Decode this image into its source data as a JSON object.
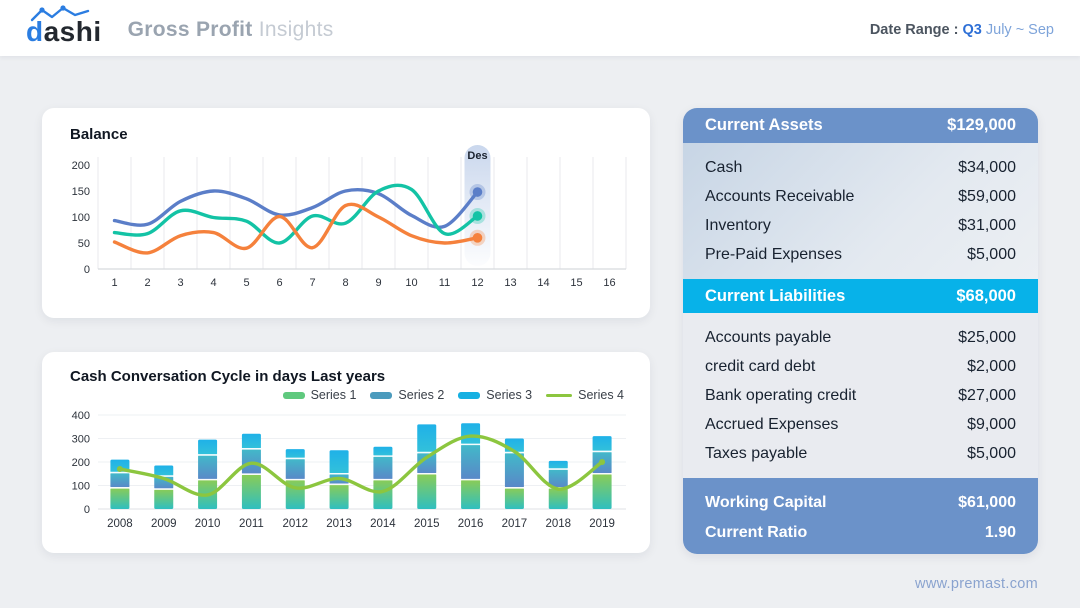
{
  "header": {
    "logo_d": "d",
    "logo_rest": "ashi",
    "title_bold": "Gross Profit",
    "title_light": "Insights",
    "date_range_label": "Date Range :",
    "date_range_quarter": "Q3",
    "date_range_period": "July ~ Sep"
  },
  "chart_data": [
    {
      "type": "line",
      "title": "Balance",
      "categories": [
        1,
        2,
        3,
        4,
        5,
        6,
        7,
        8,
        9,
        10,
        11,
        12,
        13,
        14,
        15,
        16
      ],
      "ylim": [
        0,
        200
      ],
      "yticks": [
        0,
        50,
        100,
        150,
        200
      ],
      "grid": "vertical",
      "annotation": {
        "label": "Des",
        "category": 12
      },
      "series": [
        {
          "name": "balance-blue",
          "color": "#5b7ec8",
          "values": [
            93,
            86,
            130,
            150,
            135,
            104,
            118,
            150,
            145,
            103,
            82,
            148
          ]
        },
        {
          "name": "balance-teal",
          "color": "#13c3a5",
          "values": [
            70,
            68,
            112,
            99,
            92,
            50,
            102,
            88,
            150,
            153,
            68,
            102
          ]
        },
        {
          "name": "balance-orange",
          "color": "#f5813c",
          "values": [
            52,
            31,
            64,
            70,
            40,
            101,
            41,
            122,
            100,
            64,
            50,
            60
          ]
        }
      ]
    },
    {
      "type": "bar",
      "title": "Cash Conversation Cycle in days Last years",
      "categories": [
        2008,
        2009,
        2010,
        2011,
        2012,
        2013,
        2014,
        2015,
        2016,
        2017,
        2018,
        2019
      ],
      "ylim": [
        0,
        400
      ],
      "yticks": [
        0,
        100,
        200,
        300,
        400
      ],
      "grid": "horizontal",
      "legend": [
        "Series 1",
        "Series 2",
        "Series 3",
        "Series 4"
      ],
      "legend_position": "top-right",
      "stacked": true,
      "series": [
        {
          "name": "Series 1",
          "type": "bar",
          "values": [
            90,
            85,
            125,
            148,
            125,
            105,
            125,
            150,
            125,
            90,
            90,
            150
          ]
        },
        {
          "name": "Series 2",
          "type": "bar",
          "values": [
            65,
            55,
            105,
            108,
            90,
            45,
            100,
            90,
            150,
            150,
            80,
            95
          ]
        },
        {
          "name": "Series 3",
          "type": "bar",
          "values": [
            55,
            45,
            65,
            64,
            40,
            100,
            40,
            120,
            90,
            60,
            35,
            65
          ]
        },
        {
          "name": "Series 4",
          "type": "line",
          "values": [
            170,
            130,
            60,
            195,
            90,
            130,
            75,
            220,
            310,
            245,
            85,
            200
          ]
        }
      ]
    }
  ],
  "financials": {
    "assets_header": {
      "label": "Current Assets",
      "value": "$129,000"
    },
    "assets_rows": [
      {
        "label": "Cash",
        "value": "$34,000"
      },
      {
        "label": "Accounts Receivable",
        "value": "$59,000"
      },
      {
        "label": "Inventory",
        "value": "$31,000"
      },
      {
        "label": "Pre-Paid Expenses",
        "value": "$5,000"
      }
    ],
    "liabilities_header": {
      "label": "Current Liabilities",
      "value": "$68,000"
    },
    "liabilities_rows": [
      {
        "label": "Accounts payable",
        "value": "$25,000"
      },
      {
        "label": "credit card debt",
        "value": "$2,000"
      },
      {
        "label": "Bank operating credit",
        "value": "$27,000"
      },
      {
        "label": "Accrued Expenses",
        "value": "$9,000"
      },
      {
        "label": "Taxes payable",
        "value": "$5,000"
      }
    ],
    "summary_rows": [
      {
        "label": "Working Capital",
        "value": "$61,000"
      },
      {
        "label": "Current Ratio",
        "value": "1.90"
      }
    ]
  },
  "footer": {
    "website": "www.premast.com"
  },
  "colors": {
    "brand_blue": "#2b7de1",
    "steel_blue": "#6b92c9",
    "cyan": "#07b2e9",
    "line_blue": "#5b7ec8",
    "line_teal": "#13c3a5",
    "line_orange": "#f5813c",
    "bar_s1_top": "#8bcc55",
    "bar_s1_bottom": "#2fbfc0",
    "bar_s2_top": "#41bac9",
    "bar_s2_bottom": "#5a87c8",
    "bar_s3_top": "#1fb1e8",
    "bar_s3_bottom": "#33c1da",
    "line_s4": "#8cc63f",
    "legend_s1": "#5fc97e",
    "legend_s2": "#4b9bbd",
    "legend_s3": "#16b0e2",
    "pill_top": "#c7d5ec"
  }
}
